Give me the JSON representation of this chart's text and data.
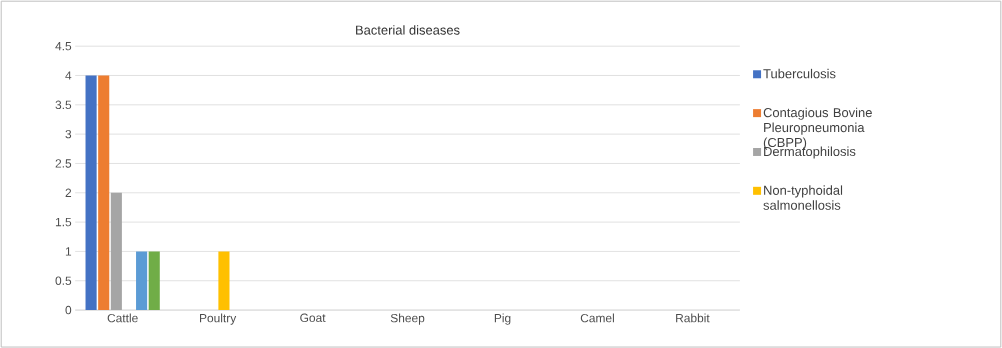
{
  "chart_data": {
    "type": "bar",
    "title": "Bacterial diseases",
    "categories": [
      "Cattle",
      "Poultry",
      "Goat",
      "Sheep",
      "Pig",
      "Camel",
      "Rabbit"
    ],
    "series": [
      {
        "name": "Tuberculosis",
        "color": "#4472c4",
        "values": [
          4,
          0,
          0,
          0,
          0,
          0,
          0
        ]
      },
      {
        "name": "Contagious Bovine Pleuropneumonia (CBPP)",
        "color": "#ed7d31",
        "values": [
          4,
          0,
          0,
          0,
          0,
          0,
          0
        ]
      },
      {
        "name": "Dermatophilosis",
        "color": "#a5a5a5",
        "values": [
          2,
          0,
          0,
          0,
          0,
          0,
          0
        ]
      },
      {
        "name": "Non-typhoidal salmonellosis",
        "color": "#ffc000",
        "values": [
          0,
          1,
          0,
          0,
          0,
          0,
          0
        ]
      },
      {
        "color": "#5b9bd5",
        "values": [
          1,
          0,
          0,
          0,
          0,
          0,
          0
        ]
      },
      {
        "color": "#70ad47",
        "values": [
          1,
          0,
          0,
          0,
          0,
          0,
          0
        ]
      }
    ],
    "ylim": [
      0,
      4.5
    ],
    "yticks": [
      0,
      0.5,
      1,
      1.5,
      2,
      2.5,
      3,
      3.5,
      4,
      4.5
    ],
    "grid": "y",
    "legend": "right"
  }
}
